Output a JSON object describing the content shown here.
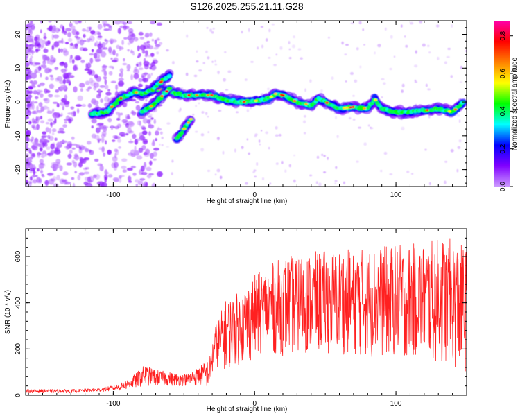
{
  "title": "S126.2025.255.21.11.G28",
  "chart_data": [
    {
      "type": "heatmap",
      "title": "S126.2025.255.21.11.G28",
      "xlabel": "Height of straight line (km)",
      "ylabel": "Frequency (Hz)",
      "xlim": [
        -162,
        150
      ],
      "ylim": [
        -25,
        24
      ],
      "xticks": [
        -100,
        0,
        100
      ],
      "yticks": [
        -20,
        -10,
        0,
        10,
        20
      ],
      "colorbar": {
        "label": "Normalized spectral amplitude",
        "range": [
          0,
          0.88
        ],
        "ticks": [
          0.0,
          0.2,
          0.4,
          0.6,
          0.8
        ],
        "colormap": [
          "#cc99ff",
          "#8000ff",
          "#0000ff",
          "#00ffff",
          "#00ff00",
          "#ffff00",
          "#ff8000",
          "#ff0000",
          "#ff00aa"
        ]
      },
      "ridge": {
        "description": "main spectral ridge (frequency vs height)",
        "x": [
          -115,
          -105,
          -95,
          -85,
          -80,
          -75,
          -70,
          -60,
          -50,
          -40,
          -30,
          -20,
          -10,
          0,
          10,
          15,
          20,
          30,
          40,
          45,
          50,
          55,
          60,
          70,
          80,
          85,
          90,
          100,
          110,
          120,
          130,
          140,
          148
        ],
        "y": [
          -3.5,
          -3,
          1,
          3,
          2.5,
          3,
          4,
          3,
          2,
          2,
          2,
          0.5,
          0,
          0.3,
          1,
          2.5,
          2,
          0,
          -1,
          1,
          0,
          -1,
          -2,
          -1.5,
          -2,
          1,
          -2,
          -3,
          -3,
          -2.5,
          -2,
          -3,
          0
        ]
      },
      "branches": [
        {
          "x": [
            -80,
            -72,
            -65,
            -60
          ],
          "y": [
            -3,
            -1,
            2,
            4
          ]
        },
        {
          "x": [
            -55,
            -50,
            -45
          ],
          "y": [
            -11,
            -8,
            -5
          ]
        },
        {
          "x": [
            -72,
            -66,
            -60
          ],
          "y": [
            4,
            6,
            8
          ]
        }
      ]
    },
    {
      "type": "line",
      "xlabel": "Height of straight line (km)",
      "ylabel": "SNR (10 * v/v)",
      "xlim": [
        -162,
        150
      ],
      "ylim": [
        0,
        720
      ],
      "xticks": [
        -100,
        0,
        100
      ],
      "yticks": [
        0,
        200,
        400,
        600
      ],
      "color": "#ff2020",
      "envelope": {
        "description": "approximate min/max envelope of the SNR trace",
        "x": [
          -162,
          -130,
          -110,
          -95,
          -85,
          -78,
          -70,
          -60,
          -50,
          -40,
          -32,
          -28,
          -20,
          -10,
          0,
          10,
          20,
          40,
          60,
          80,
          100,
          120,
          135,
          150
        ],
        "min": [
          10,
          10,
          15,
          20,
          30,
          40,
          40,
          40,
          40,
          40,
          30,
          120,
          110,
          130,
          150,
          180,
          170,
          180,
          180,
          160,
          160,
          160,
          120,
          90
        ],
        "max": [
          25,
          25,
          30,
          50,
          90,
          130,
          110,
          100,
          90,
          120,
          160,
          300,
          420,
          450,
          520,
          560,
          600,
          620,
          630,
          640,
          650,
          660,
          690,
          640
        ]
      }
    }
  ]
}
